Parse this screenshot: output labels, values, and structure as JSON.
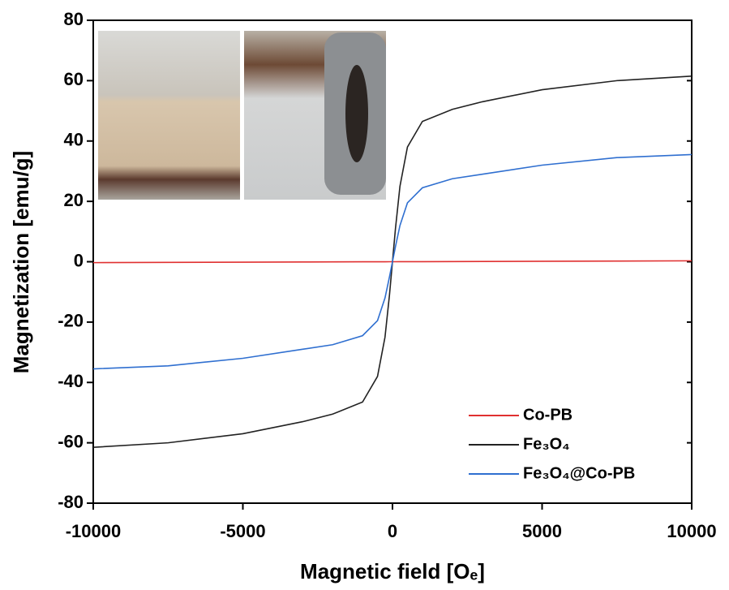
{
  "chart_data": {
    "type": "line",
    "x_label": "Magnetic field [Oₑ]",
    "y_label": "Magnetization [emu/g]",
    "x": [
      -10000,
      -7500,
      -5000,
      -3000,
      -2000,
      -1000,
      -500,
      -250,
      -100,
      0,
      100,
      250,
      500,
      1000,
      2000,
      3000,
      5000,
      7500,
      10000
    ],
    "series": [
      {
        "name": "Co-PB",
        "color": "#e03030",
        "values": [
          -0.3,
          -0.23,
          -0.15,
          -0.09,
          -0.06,
          -0.03,
          -0.015,
          -0.01,
          0,
          0,
          0,
          0.01,
          0.015,
          0.03,
          0.06,
          0.09,
          0.15,
          0.23,
          0.3
        ]
      },
      {
        "name": "Fe₃O₄",
        "color": "#222222",
        "values": [
          -61.5,
          -60,
          -57,
          -53,
          -50.5,
          -46.5,
          -38,
          -25,
          -11,
          0,
          11,
          25,
          38,
          46.5,
          50.5,
          53,
          57,
          60,
          61.5
        ]
      },
      {
        "name": "Fe₃O₄@Co-PB",
        "color": "#2f6fd0",
        "values": [
          -35.5,
          -34.5,
          -32,
          -29,
          -27.5,
          -24.5,
          -19.5,
          -12,
          -5,
          0,
          5,
          12,
          19.5,
          24.5,
          27.5,
          29,
          32,
          34.5,
          35.5
        ]
      }
    ],
    "xlim": [
      -10000,
      10000
    ],
    "xticks": [
      -10000,
      -5000,
      0,
      5000,
      10000
    ],
    "ylim": [
      -80,
      80
    ],
    "yticks": [
      -80,
      -60,
      -40,
      -20,
      0,
      20,
      40,
      60,
      80
    ],
    "legend": "lower right"
  }
}
